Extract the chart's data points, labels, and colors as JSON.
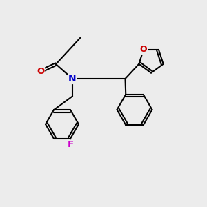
{
  "background_color": "#ececec",
  "bond_color": "#000000",
  "bond_width": 1.5,
  "atom_colors": {
    "N": "#0000cc",
    "O": "#cc0000",
    "F": "#cc00cc",
    "C": "#000000"
  },
  "font_size": 9.5
}
